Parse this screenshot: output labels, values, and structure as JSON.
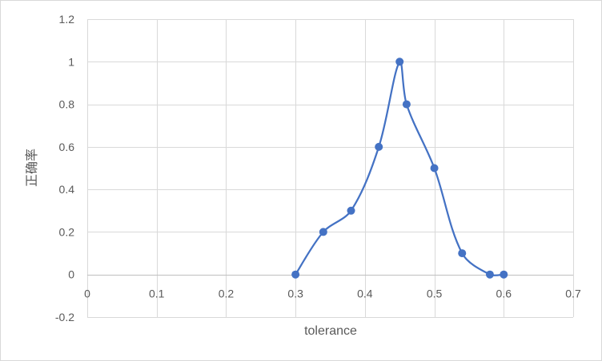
{
  "chart_data": {
    "type": "scatter",
    "title": "",
    "xlabel": "tolerance",
    "ylabel": "正确率",
    "xlim": [
      0,
      0.7
    ],
    "ylim": [
      -0.2,
      1.2
    ],
    "x_ticks": [
      {
        "value": 0,
        "label": "0"
      },
      {
        "value": 0.1,
        "label": "0.1"
      },
      {
        "value": 0.2,
        "label": "0.2"
      },
      {
        "value": 0.3,
        "label": "0.3"
      },
      {
        "value": 0.4,
        "label": "0.4"
      },
      {
        "value": 0.5,
        "label": "0.5"
      },
      {
        "value": 0.6,
        "label": "0.6"
      },
      {
        "value": 0.7,
        "label": "0.7"
      }
    ],
    "y_ticks": [
      {
        "value": -0.2,
        "label": "-0.2"
      },
      {
        "value": 0,
        "label": "0"
      },
      {
        "value": 0.2,
        "label": "0.2"
      },
      {
        "value": 0.4,
        "label": "0.4"
      },
      {
        "value": 0.6,
        "label": "0.6"
      },
      {
        "value": 0.8,
        "label": "0.8"
      },
      {
        "value": 1,
        "label": "1"
      },
      {
        "value": 1.2,
        "label": "1.2"
      }
    ],
    "grid": true,
    "legend": "none",
    "line_style": "smooth",
    "marker": "circle",
    "series": [
      {
        "color": "#4472C4",
        "x": [
          0.3,
          0.34,
          0.38,
          0.42,
          0.45,
          0.46,
          0.5,
          0.54,
          0.58,
          0.6
        ],
        "y": [
          0,
          0.2,
          0.3,
          0.6,
          1,
          0.8,
          0.5,
          0.1,
          0,
          0
        ]
      }
    ]
  }
}
